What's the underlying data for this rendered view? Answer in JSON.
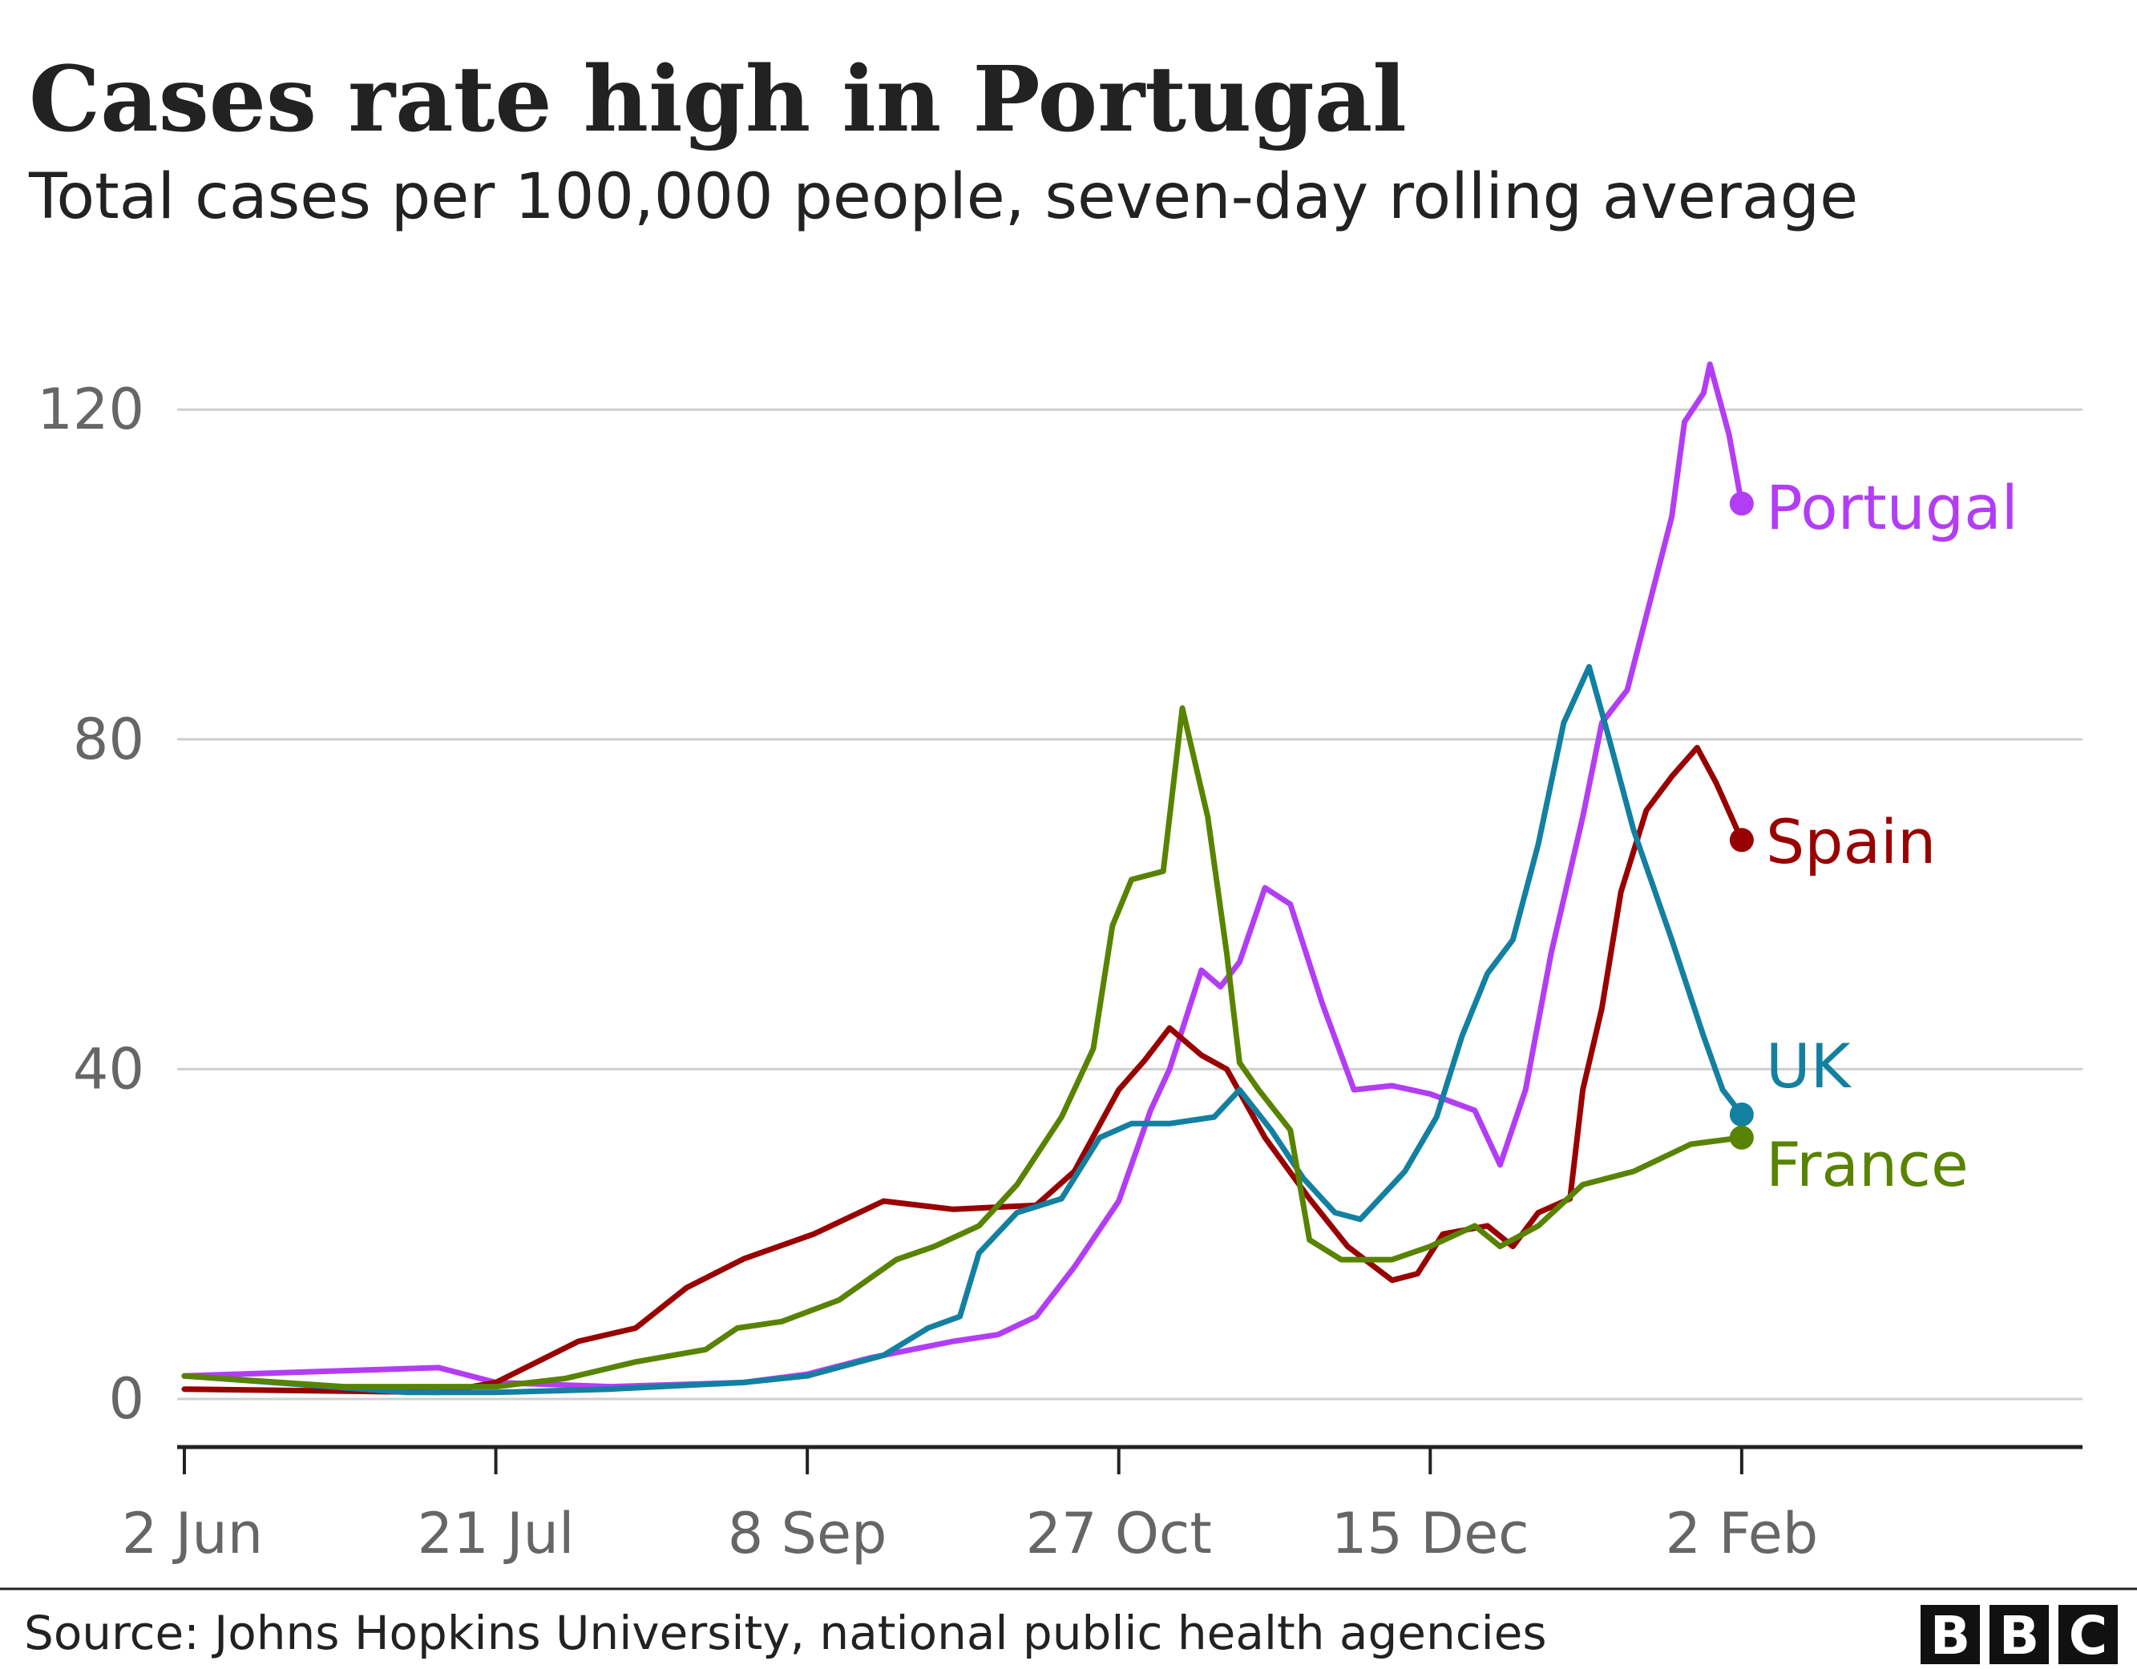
{
  "chart_data": {
    "type": "line",
    "title": "Cases rate high in Portugal",
    "subtitle": "Total cases per 100,000 people, seven-day rolling average",
    "xlabel": "",
    "ylabel": "",
    "ylim": [
      0,
      130
    ],
    "xlim": [
      "2020-06-02",
      "2021-03-01"
    ],
    "grid": true,
    "y_ticks": [
      0,
      40,
      80,
      120
    ],
    "y_tick_labels": [
      "0",
      "40",
      "80",
      "120"
    ],
    "x_ticks": [
      "2020-06-02",
      "2020-07-21",
      "2020-09-08",
      "2020-10-27",
      "2020-12-15",
      "2021-02-02"
    ],
    "x_tick_labels": [
      "2 Jun",
      "21 Jul",
      "8 Sep",
      "27 Oct",
      "15 Dec",
      "2 Feb"
    ],
    "legend": "inline labels at line ends",
    "series": [
      {
        "name": "Portugal",
        "color": "#b33df5",
        "x": [
          "2020-06-02",
          "2020-07-12",
          "2020-07-21",
          "2020-08-08",
          "2020-08-29",
          "2020-09-08",
          "2020-09-18",
          "2020-10-01",
          "2020-10-08",
          "2020-10-14",
          "2020-10-20",
          "2020-10-27",
          "2020-11-01",
          "2020-11-04",
          "2020-11-09",
          "2020-11-12",
          "2020-11-15",
          "2020-11-19",
          "2020-11-23",
          "2020-11-28",
          "2020-12-03",
          "2020-12-09",
          "2020-12-15",
          "2020-12-22",
          "2020-12-26",
          "2020-12-30",
          "2021-01-03",
          "2021-01-08",
          "2021-01-11",
          "2021-01-15",
          "2021-01-18",
          "2021-01-22",
          "2021-01-24",
          "2021-01-27",
          "2021-01-28",
          "2021-01-31",
          "2021-02-02"
        ],
        "values": [
          2.8,
          3.8,
          2,
          1.5,
          2,
          3,
          5,
          7,
          7.8,
          10,
          16,
          24,
          35,
          40,
          52,
          50,
          53,
          62,
          60,
          48,
          37.5,
          38,
          37,
          35,
          28.4,
          37.5,
          54,
          70.6,
          82,
          86,
          95,
          107,
          118.5,
          122,
          125.5,
          117,
          108.6
        ]
      },
      {
        "name": "Spain",
        "color": "#990000",
        "x": [
          "2020-06-02",
          "2020-07-12",
          "2020-07-21",
          "2020-08-03",
          "2020-08-12",
          "2020-08-20",
          "2020-08-29",
          "2020-09-09",
          "2020-09-20",
          "2020-10-01",
          "2020-10-14",
          "2020-10-20",
          "2020-10-27",
          "2020-10-31",
          "2020-11-04",
          "2020-11-09",
          "2020-11-13",
          "2020-11-19",
          "2020-11-26",
          "2020-12-02",
          "2020-12-09",
          "2020-12-13",
          "2020-12-17",
          "2020-12-24",
          "2020-12-28",
          "2021-01-01",
          "2021-01-06",
          "2021-01-08",
          "2021-01-11",
          "2021-01-14",
          "2021-01-18",
          "2021-01-22",
          "2021-01-26",
          "2021-01-29",
          "2021-02-02"
        ],
        "values": [
          1.2,
          0.8,
          2,
          7,
          8.6,
          13.5,
          17,
          20,
          24,
          23,
          23.5,
          27.6,
          37.5,
          41,
          45,
          41.7,
          40,
          31.7,
          24.3,
          18.5,
          14.4,
          15.2,
          20,
          21,
          18.5,
          22.6,
          24.3,
          37.5,
          47.4,
          61.5,
          71.4,
          75.5,
          79,
          74.7,
          67.8
        ]
      },
      {
        "name": "UK",
        "color": "#1380a1",
        "x": [
          "2020-06-02",
          "2020-06-16",
          "2020-07-07",
          "2020-07-21",
          "2020-08-08",
          "2020-08-29",
          "2020-09-08",
          "2020-09-20",
          "2020-09-27",
          "2020-10-02",
          "2020-10-05",
          "2020-10-11",
          "2020-10-18",
          "2020-10-24",
          "2020-10-29",
          "2020-11-04",
          "2020-11-11",
          "2020-11-15",
          "2020-11-20",
          "2020-11-25",
          "2020-11-30",
          "2020-12-04",
          "2020-12-11",
          "2020-12-16",
          "2020-12-20",
          "2020-12-24",
          "2020-12-28",
          "2021-01-01",
          "2021-01-05",
          "2021-01-09",
          "2021-01-12",
          "2021-01-16",
          "2021-01-22",
          "2021-01-27",
          "2021-01-30",
          "2021-02-02"
        ],
        "values": [
          2.8,
          2,
          0.8,
          0.8,
          1.2,
          2,
          2.8,
          5.3,
          8.6,
          10,
          17.7,
          22.6,
          24.3,
          31.7,
          33.4,
          33.4,
          34.2,
          37.5,
          32.6,
          26.8,
          22.6,
          21.8,
          27.6,
          34.2,
          44,
          51.6,
          55.7,
          67.3,
          82,
          88.8,
          80.5,
          69,
          55.7,
          44,
          37.5,
          34.5
        ]
      },
      {
        "name": "France",
        "color": "#588300",
        "x": [
          "2020-06-02",
          "2020-06-27",
          "2020-07-21",
          "2020-08-01",
          "2020-08-12",
          "2020-08-23",
          "2020-08-28",
          "2020-09-04",
          "2020-09-13",
          "2020-09-22",
          "2020-09-28",
          "2020-10-05",
          "2020-10-11",
          "2020-10-18",
          "2020-10-23",
          "2020-10-26",
          "2020-10-29",
          "2020-11-03",
          "2020-11-06",
          "2020-11-10",
          "2020-11-13",
          "2020-11-15",
          "2020-11-18",
          "2020-11-23",
          "2020-11-26",
          "2020-12-01",
          "2020-12-09",
          "2020-12-15",
          "2020-12-22",
          "2020-12-26",
          "2021-01-01",
          "2021-01-08",
          "2021-01-16",
          "2021-01-25",
          "2021-02-02"
        ],
        "values": [
          2.8,
          1.5,
          1.5,
          2.5,
          4.5,
          6,
          8.6,
          9.4,
          12,
          16.9,
          18.5,
          21,
          26,
          34.2,
          42.5,
          57.4,
          63,
          64,
          83.8,
          70.6,
          54,
          40.8,
          37.5,
          32.6,
          19.3,
          16.9,
          16.9,
          18.5,
          21,
          18.5,
          21,
          26,
          27.6,
          30.9,
          31.7
        ]
      }
    ]
  },
  "footer": {
    "source": "Source: Johns Hopkins University, national public health agencies",
    "logo": "BBC"
  }
}
